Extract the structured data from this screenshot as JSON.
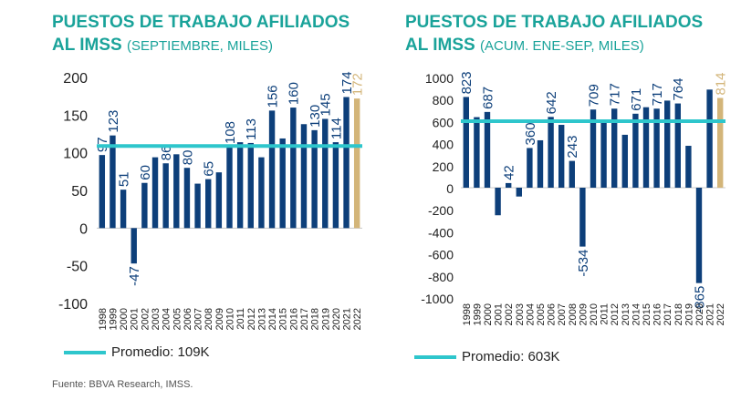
{
  "source": "Fuente: BBVA Research, IMSS.",
  "colors": {
    "bar": "#0d3f7a",
    "highlight": "#d3b579",
    "average": "#2ec6cc",
    "title": "#1aa39a"
  },
  "chart_data": [
    {
      "type": "bar",
      "title_line1": "PUESTOS DE TRABAJO AFILIADOS",
      "title_line2": "AL IMSS",
      "subtitle": "(SEPTIEMBRE, MILES)",
      "categories": [
        "1998",
        "1999",
        "2000",
        "2001",
        "2002",
        "2003",
        "2004",
        "2005",
        "2006",
        "2007",
        "2008",
        "2009",
        "2010",
        "2011",
        "2012",
        "2013",
        "2014",
        "2015",
        "2016",
        "2017",
        "2018",
        "2019",
        "2020",
        "2021",
        "2022"
      ],
      "values": [
        97,
        123,
        51,
        -47,
        60,
        94,
        86,
        98,
        80,
        59,
        65,
        74,
        108,
        114,
        113,
        94,
        156,
        119,
        160,
        138,
        130,
        145,
        114,
        174,
        172
      ],
      "labels": [
        "97",
        "123",
        "51",
        "-47",
        "60",
        "",
        "86",
        "",
        "80",
        "",
        "65",
        "",
        "108",
        "",
        "113",
        "",
        "156",
        "",
        "160",
        "",
        "130",
        "145",
        "114",
        "174",
        "172"
      ],
      "highlight_index": 24,
      "yticks": [
        200,
        150,
        100,
        50,
        0,
        -50,
        -100
      ],
      "ytick_labels": [
        "200",
        "150",
        "100",
        "50",
        "0",
        "-50",
        "-100"
      ],
      "ylim": [
        -100,
        200
      ],
      "average": 109,
      "legend": "Promedio: 109K"
    },
    {
      "type": "bar",
      "title_line1": "PUESTOS DE TRABAJO AFILIADOS",
      "title_line2": "AL IMSS",
      "subtitle": "(ACUM. ENE-SEP, MILES)",
      "categories": [
        "1998",
        "1999",
        "2000",
        "2001",
        "2002",
        "2003",
        "2004",
        "2005",
        "2006",
        "2007",
        "2008",
        "2009",
        "2010",
        "2011",
        "2012",
        "2013",
        "2014",
        "2015",
        "2016",
        "2017",
        "2018",
        "2019",
        "2020",
        "2021",
        "2022"
      ],
      "values": [
        823,
        640,
        687,
        -250,
        42,
        -80,
        360,
        430,
        642,
        570,
        243,
        -534,
        709,
        590,
        717,
        480,
        671,
        730,
        717,
        790,
        764,
        380,
        -865,
        890,
        814
      ],
      "labels": [
        "823",
        "",
        "687",
        "",
        "42",
        "",
        "360",
        "",
        "642",
        "",
        "243",
        "-534",
        "709",
        "",
        "717",
        "",
        "671",
        "",
        "717",
        "",
        "764",
        "",
        "-865",
        "",
        "814"
      ],
      "highlight_index": 24,
      "yticks": [
        1000,
        800,
        600,
        400,
        200,
        0,
        -200,
        -400,
        -600,
        -800,
        -1000
      ],
      "ytick_labels": [
        "1000",
        "800",
        "600",
        "400",
        "200",
        "0",
        "-200",
        "-400",
        "-600",
        "-800",
        "-1000"
      ],
      "ylim": [
        -1000,
        1000
      ],
      "average": 603,
      "legend": "Promedio: 603K"
    }
  ]
}
